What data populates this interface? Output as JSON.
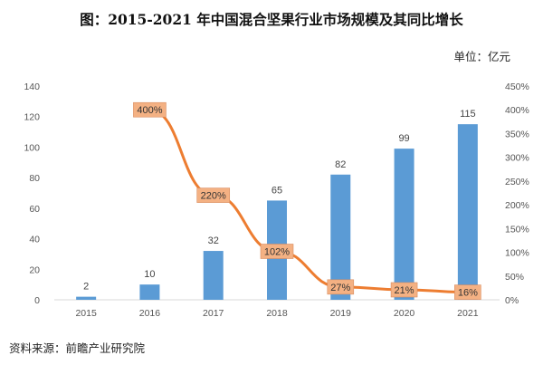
{
  "title": "图：2015-2021 年中国混合坚果行业市场规模及其同比增长",
  "unit_label": "单位：亿元",
  "source": "资料来源：前瞻产业研究院",
  "chart_data": {
    "type": "bar",
    "categories": [
      "2015",
      "2016",
      "2017",
      "2018",
      "2019",
      "2020",
      "2021"
    ],
    "series": [
      {
        "type": "bar",
        "values": [
          2,
          10,
          32,
          65,
          82,
          99,
          115
        ],
        "color": "#5b9bd5",
        "axis": "left",
        "data_labels": [
          "2",
          "10",
          "32",
          "65",
          "82",
          "99",
          "115"
        ]
      },
      {
        "type": "line",
        "values": [
          null,
          400,
          220,
          102,
          27,
          21,
          16
        ],
        "color": "#ed7d31",
        "axis": "right",
        "data_labels": [
          null,
          "400%",
          "220%",
          "102%",
          "27%",
          "21%",
          "16%"
        ]
      }
    ],
    "left_axis": {
      "ylim": [
        0,
        140
      ],
      "ticks": [
        "0",
        "20",
        "40",
        "60",
        "80",
        "100",
        "120",
        "140"
      ]
    },
    "right_axis": {
      "ylim": [
        0,
        450
      ],
      "ticks": [
        "0%",
        "50%",
        "100%",
        "150%",
        "200%",
        "250%",
        "300%",
        "350%",
        "400%",
        "450%"
      ]
    },
    "grid": false,
    "label_box_color": "#f4b183"
  }
}
